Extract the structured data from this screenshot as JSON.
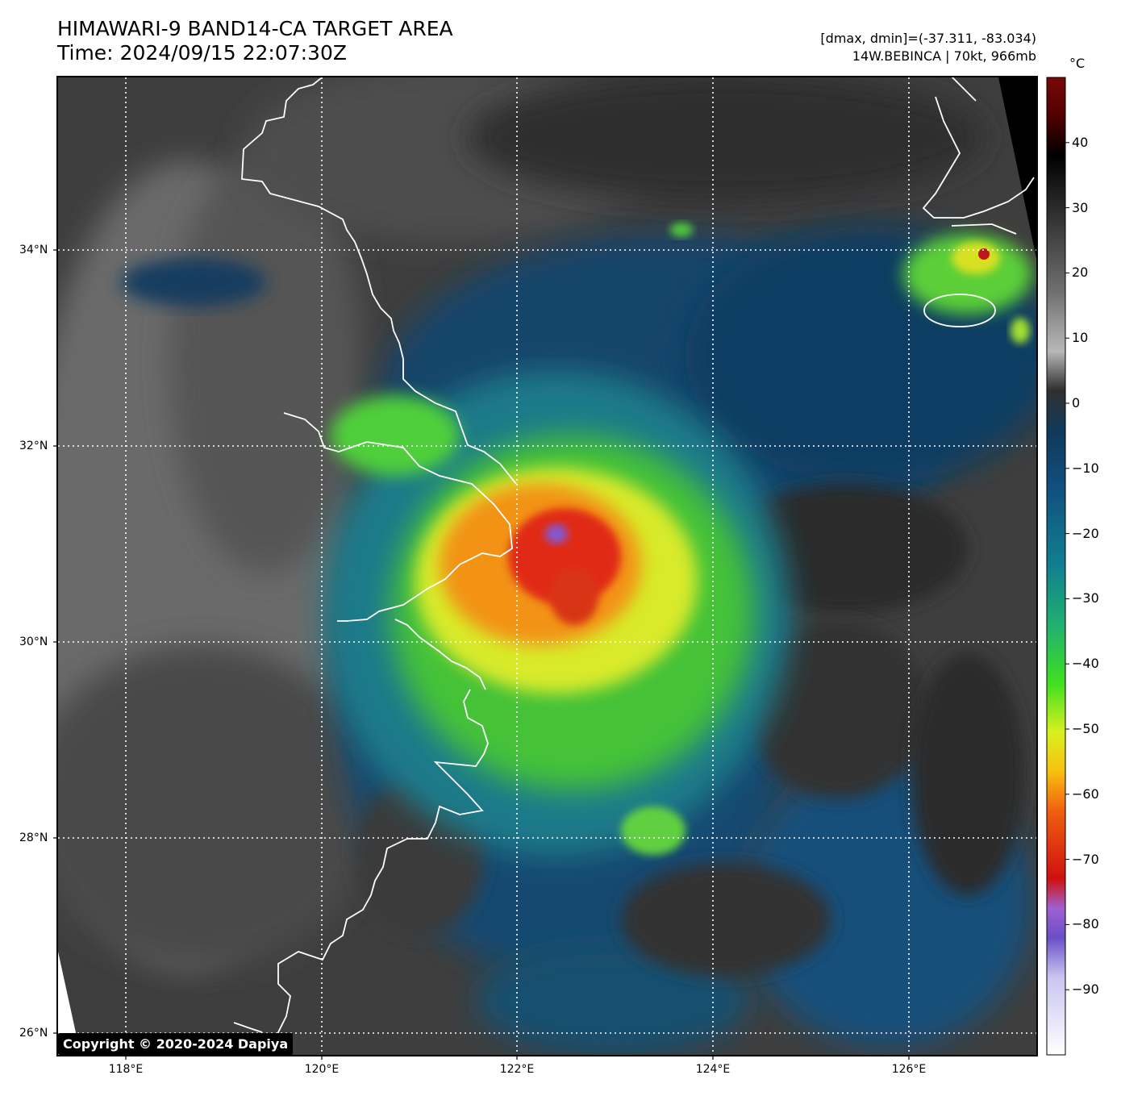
{
  "title": {
    "line1": "HIMAWARI-9 BAND14-CA TARGET AREA",
    "line2": "Time: 2024/09/15 22:07:30Z"
  },
  "meta": {
    "line1": "[dmax, dmin]=(-37.311, -83.034)",
    "line2": "14W.BEBINCA | 70kt, 966mb"
  },
  "map": {
    "lon_range": [
      117.3,
      127.3
    ],
    "lat_range": [
      25.8,
      35.8
    ],
    "lat_ticks": [
      "34°N",
      "32°N",
      "30°N",
      "28°N",
      "26°N"
    ],
    "lat_values": [
      34,
      32,
      30,
      28,
      26
    ],
    "lon_ticks": [
      "118°E",
      "120°E",
      "122°E",
      "124°E",
      "126°E"
    ],
    "lon_values": [
      118,
      120,
      122,
      124,
      126
    ],
    "gridlines": "dotted white",
    "storm_center": {
      "lon": 122.4,
      "lat": 31.1
    }
  },
  "colorbar": {
    "unit": "°C",
    "range": [
      -100,
      50
    ],
    "labels": [
      "40",
      "30",
      "20",
      "10",
      "0",
      "−10",
      "−20",
      "−30",
      "−40",
      "−50",
      "−60",
      "−70",
      "−80",
      "−90"
    ],
    "values": [
      40,
      30,
      20,
      10,
      0,
      -10,
      -20,
      -30,
      -40,
      -50,
      -60,
      -70,
      -80,
      -90
    ]
  },
  "copyright": "Copyright © 2020-2024 Dapiya"
}
